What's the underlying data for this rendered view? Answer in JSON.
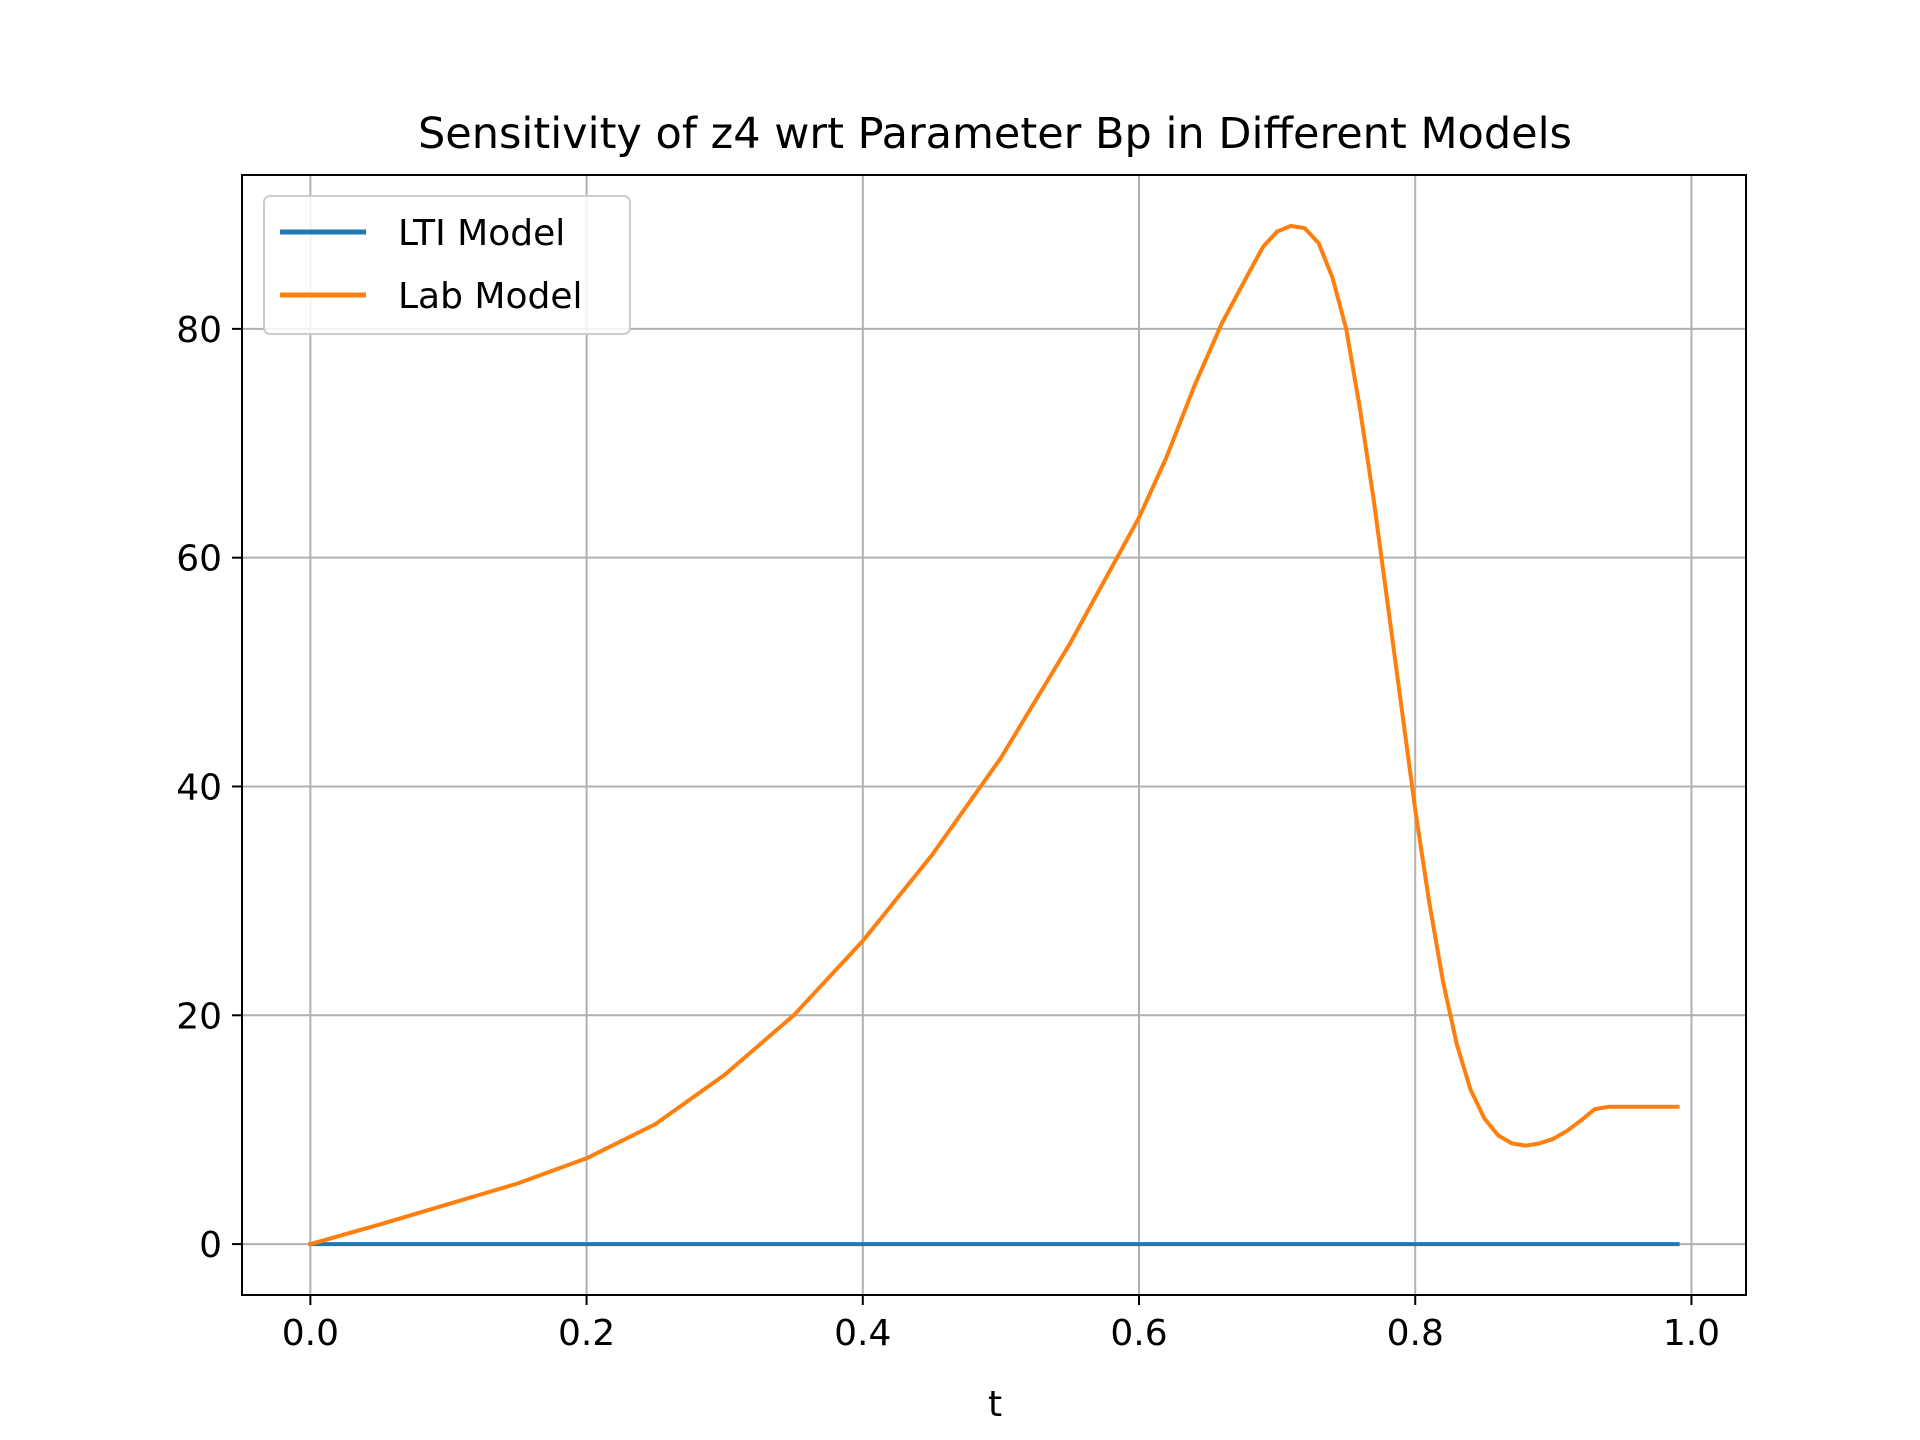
{
  "chart_data": {
    "type": "line",
    "title": "Sensitivity of z4 wrt Parameter Bp in Different Models",
    "xlabel": "t",
    "ylabel": "",
    "xlim": [
      -0.0495,
      1.0395
    ],
    "ylim": [
      -4.45,
      93.45
    ],
    "grid": true,
    "legend_position": "top-left",
    "x_ticks": [
      0.0,
      0.2,
      0.4,
      0.6,
      0.8,
      1.0
    ],
    "x_tick_labels": [
      "0.0",
      "0.2",
      "0.4",
      "0.6",
      "0.8",
      "1.0"
    ],
    "y_ticks": [
      0,
      20,
      40,
      60,
      80
    ],
    "y_tick_labels": [
      "0",
      "20",
      "40",
      "60",
      "80"
    ],
    "series": [
      {
        "name": "LTI Model",
        "color": "#1f77b4",
        "x": [
          0.0,
          0.99
        ],
        "values": [
          0.0,
          0.0
        ]
      },
      {
        "name": "Lab Model",
        "color": "#ff7f0e",
        "x": [
          0.0,
          0.05,
          0.1,
          0.15,
          0.2,
          0.25,
          0.3,
          0.35,
          0.4,
          0.45,
          0.5,
          0.55,
          0.6,
          0.62,
          0.64,
          0.66,
          0.68,
          0.69,
          0.7,
          0.71,
          0.72,
          0.73,
          0.74,
          0.75,
          0.76,
          0.77,
          0.78,
          0.79,
          0.8,
          0.81,
          0.82,
          0.83,
          0.84,
          0.85,
          0.86,
          0.87,
          0.88,
          0.89,
          0.9,
          0.91,
          0.92,
          0.93,
          0.94,
          0.95,
          0.96,
          0.97,
          0.98,
          0.99
        ],
        "values": [
          0.0,
          1.7,
          3.5,
          5.3,
          7.5,
          10.5,
          14.8,
          20.0,
          26.5,
          34.0,
          42.5,
          52.5,
          63.5,
          68.8,
          75.0,
          80.5,
          85.0,
          87.2,
          88.5,
          89.0,
          88.8,
          87.5,
          84.5,
          80.0,
          73.0,
          65.0,
          56.0,
          47.0,
          38.0,
          30.0,
          23.0,
          17.5,
          13.5,
          11.0,
          9.5,
          8.8,
          8.6,
          8.8,
          9.2,
          9.9,
          10.8,
          11.8,
          12.0,
          12.0,
          12.0,
          12.0,
          12.0,
          12.0
        ]
      }
    ]
  }
}
